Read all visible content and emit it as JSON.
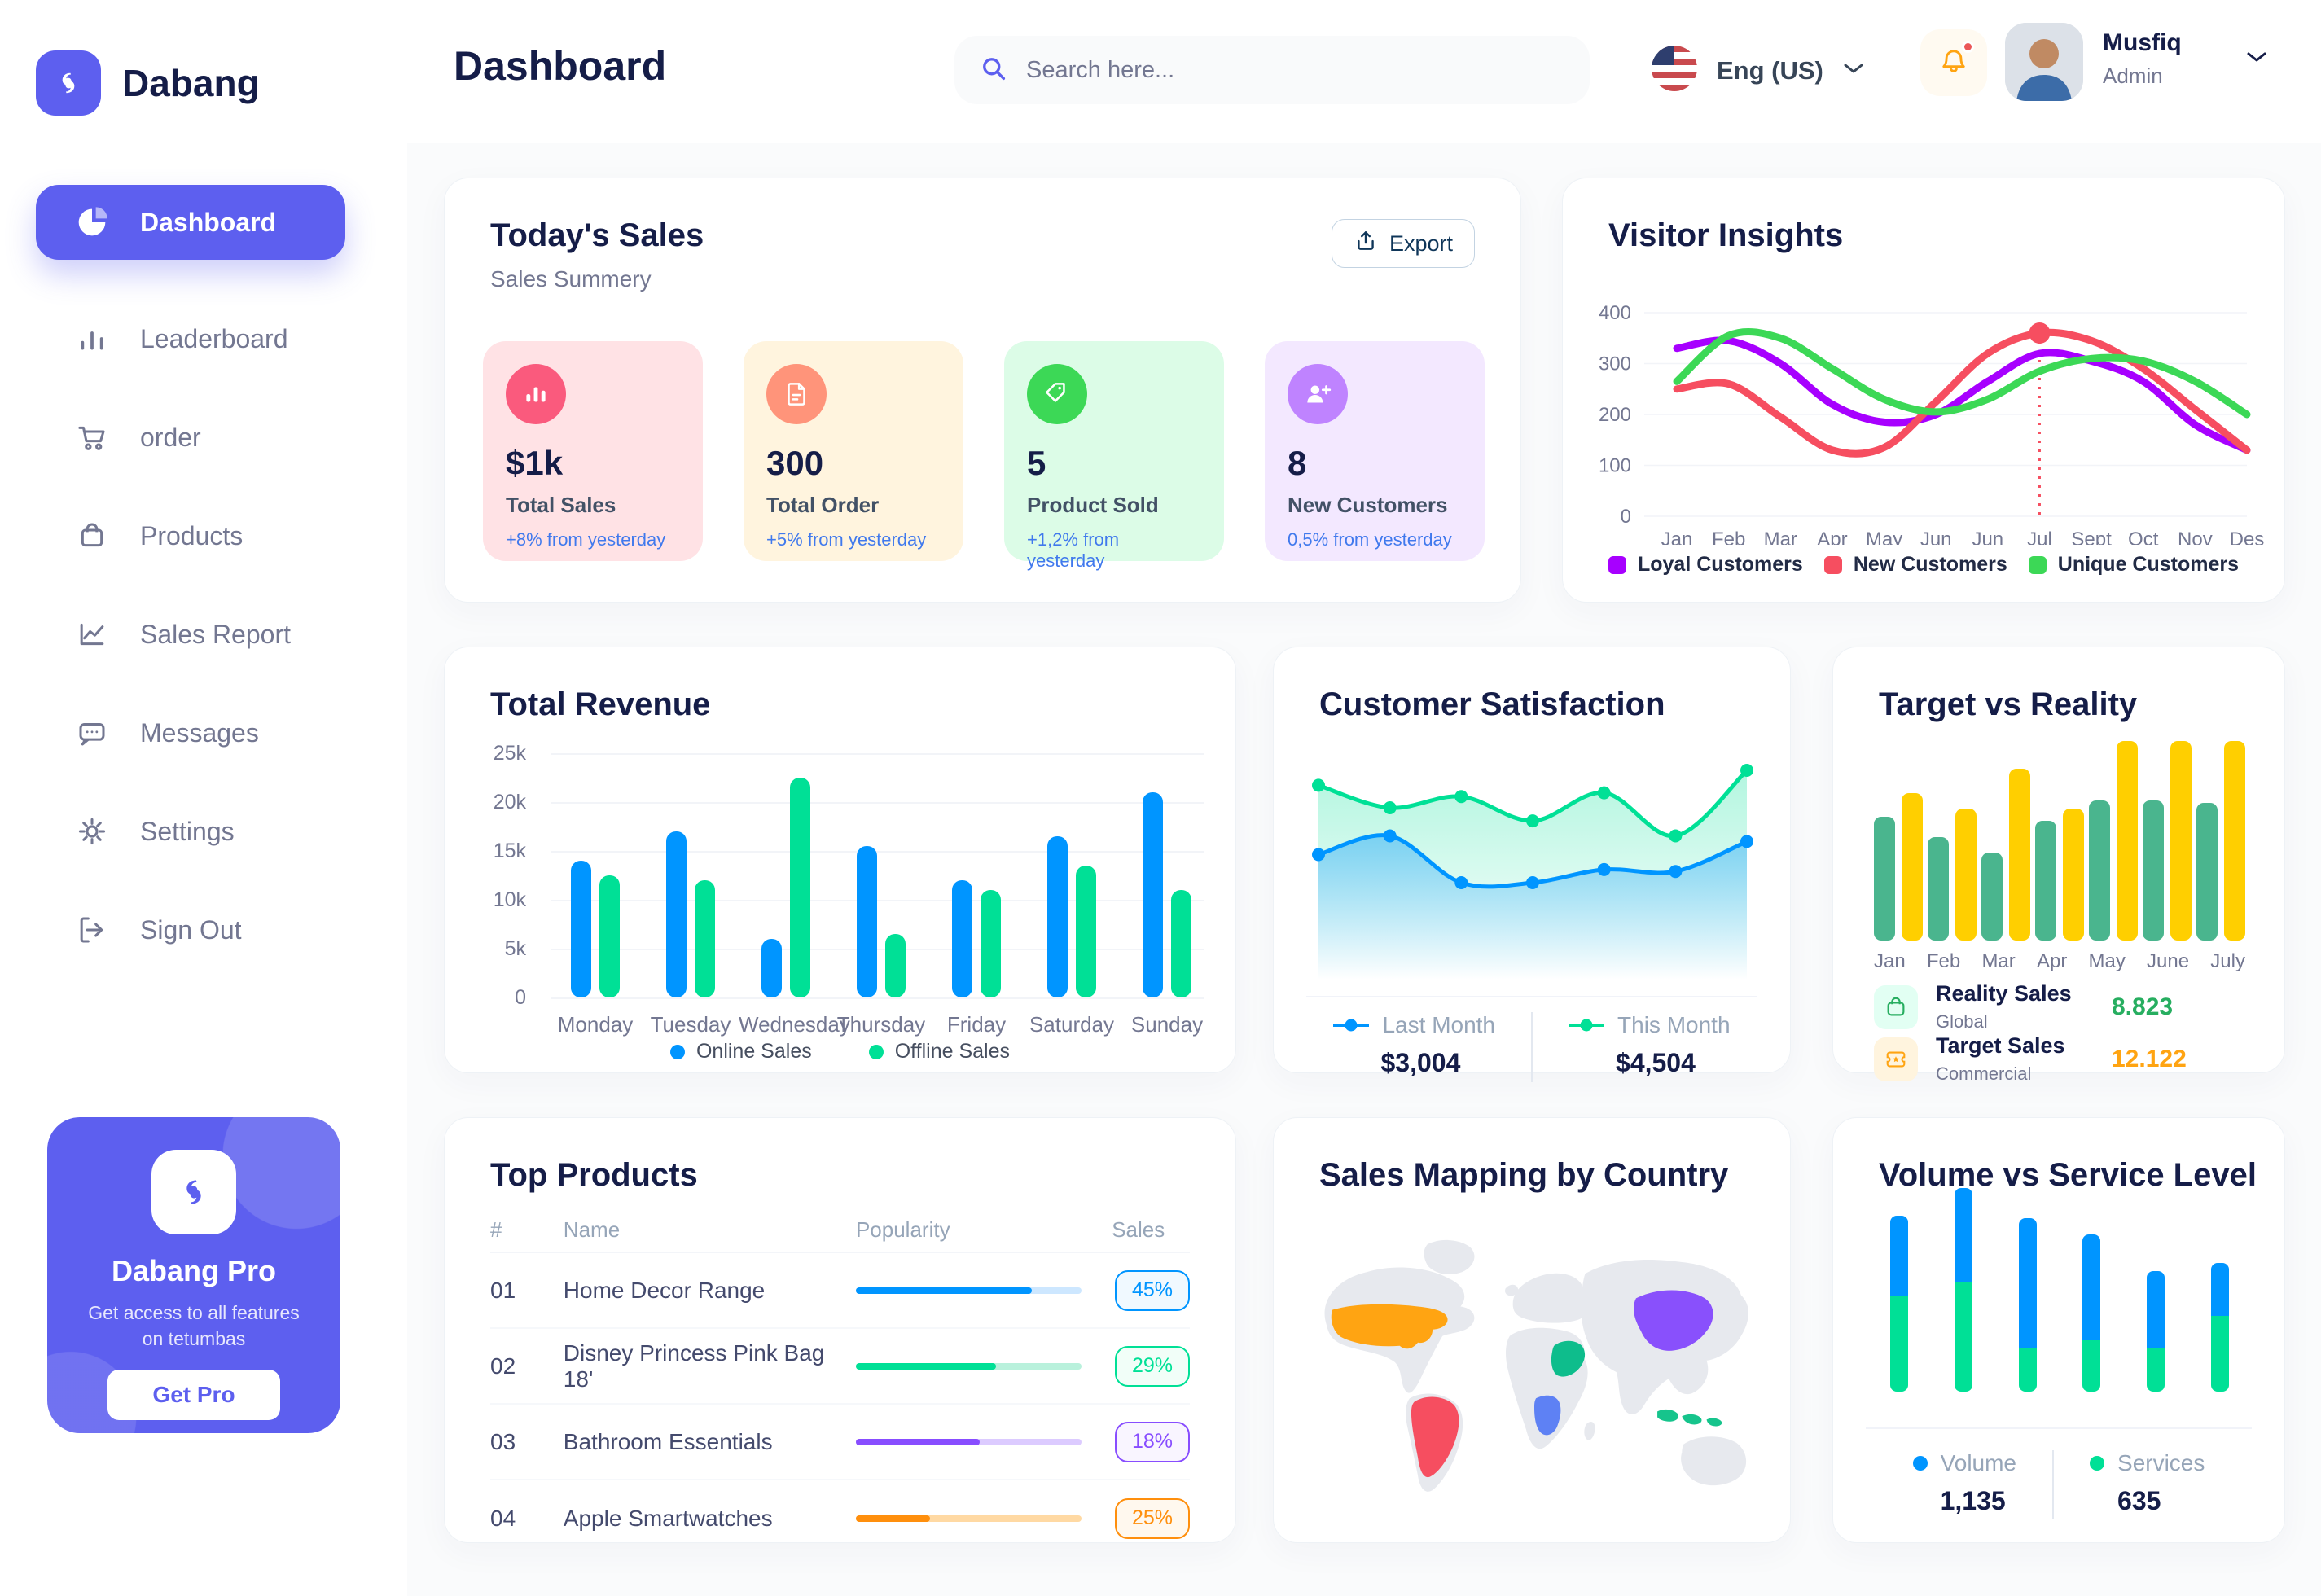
{
  "app": {
    "brand": "Dabang",
    "page_title": "Dashboard",
    "accent_color": "#5D5FEF"
  },
  "header": {
    "search": {
      "placeholder": "Search here..."
    },
    "language": {
      "label": "Eng (US)"
    },
    "notification": {
      "has_unread": true
    },
    "user": {
      "name": "Musfiq",
      "role": "Admin"
    }
  },
  "sidebar": {
    "items": [
      {
        "label": "Dashboard",
        "icon": "pie-chart-icon",
        "active": true
      },
      {
        "label": "Leaderboard",
        "icon": "bar-chart-icon",
        "active": false
      },
      {
        "label": "order",
        "icon": "cart-icon",
        "active": false
      },
      {
        "label": "Products",
        "icon": "bag-icon",
        "active": false
      },
      {
        "label": "Sales Report",
        "icon": "line-chart-icon",
        "active": false
      },
      {
        "label": "Messages",
        "icon": "message-icon",
        "active": false
      },
      {
        "label": "Settings",
        "icon": "gear-icon",
        "active": false
      },
      {
        "label": "Sign Out",
        "icon": "sign-out-icon",
        "active": false
      }
    ],
    "pro_card": {
      "title": "Dabang Pro",
      "description": "Get access to all features on tetumbas",
      "button": "Get Pro"
    }
  },
  "today_sales": {
    "title": "Today's Sales",
    "subtitle": "Sales Summery",
    "export_label": "Export",
    "cards": [
      {
        "value": "$1k",
        "label": "Total Sales",
        "delta": "+8% from yesterday",
        "bg": "#FFE2E5",
        "icon_bg": "#FA5A7D",
        "icon": "chart-icon"
      },
      {
        "value": "300",
        "label": "Total Order",
        "delta": "+5% from yesterday",
        "bg": "#FFF4DE",
        "icon_bg": "#FF947A",
        "icon": "file-icon"
      },
      {
        "value": "5",
        "label": "Product Sold",
        "delta": "+1,2% from yesterday",
        "bg": "#DCFCE7",
        "icon_bg": "#3CD856",
        "icon": "tag-icon"
      },
      {
        "value": "8",
        "label": "New Customers",
        "delta": "0,5% from yesterday",
        "bg": "#F3E8FF",
        "icon_bg": "#BF83FF",
        "icon": "user-plus-icon"
      }
    ]
  },
  "visitor_insights": {
    "title": "Visitor Insights",
    "chart_data": {
      "type": "line",
      "x": [
        "Jan",
        "Feb",
        "Mar",
        "Apr",
        "May",
        "Jun",
        "Jun",
        "Jul",
        "Sept",
        "Oct",
        "Nov",
        "Des"
      ],
      "ylim": [
        0,
        400
      ],
      "yticks": [
        0,
        100,
        200,
        300,
        400
      ],
      "series": [
        {
          "name": "Loyal Customers",
          "color": "#A700FF",
          "values": [
            330,
            345,
            300,
            220,
            185,
            200,
            265,
            320,
            305,
            265,
            180,
            130
          ]
        },
        {
          "name": "New Customers",
          "color": "#F64E60",
          "values": [
            250,
            260,
            195,
            130,
            135,
            225,
            320,
            360,
            345,
            290,
            210,
            130
          ]
        },
        {
          "name": "Unique Customers",
          "color": "#3CD856",
          "values": [
            265,
            355,
            350,
            290,
            230,
            205,
            230,
            285,
            310,
            305,
            265,
            200
          ]
        }
      ],
      "marker": {
        "series": "New Customers",
        "x_index": 7,
        "value": 360
      }
    }
  },
  "total_revenue": {
    "title": "Total Revenue",
    "chart_data": {
      "type": "bar",
      "categories": [
        "Monday",
        "Tuesday",
        "Wednesday",
        "Thursday",
        "Friday",
        "Saturday",
        "Sunday"
      ],
      "ylim": [
        0,
        25000
      ],
      "ytick_labels": [
        "0",
        "5k",
        "10k",
        "15k",
        "20k",
        "25k"
      ],
      "series": [
        {
          "name": "Online Sales",
          "color": "#0095FF",
          "values": [
            14000,
            17000,
            6000,
            15500,
            12000,
            16500,
            21000
          ]
        },
        {
          "name": "Offline Sales",
          "color": "#00E096",
          "values": [
            12500,
            12000,
            22500,
            6500,
            11000,
            13500,
            11000
          ]
        }
      ]
    }
  },
  "customer_satisfaction": {
    "title": "Customer Satisfaction",
    "chart_data": {
      "type": "area",
      "series": [
        {
          "name": "Last Month",
          "color": "#0095FF",
          "total": "$3,004",
          "values": [
            45,
            55,
            30,
            30,
            37,
            36,
            52
          ]
        },
        {
          "name": "This Month",
          "color": "#00E096",
          "total": "$4,504",
          "values": [
            82,
            70,
            76,
            63,
            78,
            55,
            90
          ]
        }
      ]
    }
  },
  "target_vs_reality": {
    "title": "Target vs Reality",
    "chart_data": {
      "type": "bar",
      "categories": [
        "Jan",
        "Feb",
        "Mar",
        "Apr",
        "May",
        "June",
        "July"
      ],
      "series": [
        {
          "name": "Reality Sales",
          "color": "#4AB58E",
          "values": [
            62,
            52,
            44,
            60,
            70,
            70,
            69
          ]
        },
        {
          "name": "Target Sales",
          "color": "#FFCF00",
          "values": [
            74,
            66,
            86,
            66,
            100,
            100,
            100
          ]
        }
      ]
    },
    "legend": [
      {
        "title": "Reality Sales",
        "subtitle": "Global",
        "value": "8.823",
        "value_color": "#27AE60",
        "tile_bg": "#E2FFF3",
        "icon": "shopping-bag-icon"
      },
      {
        "title": "Target Sales",
        "subtitle": "Commercial",
        "value": "12.122",
        "value_color": "#FFA412",
        "tile_bg": "#FFF4DE",
        "icon": "ticket-icon"
      }
    ]
  },
  "top_products": {
    "title": "Top Products",
    "columns": [
      "#",
      "Name",
      "Popularity",
      "Sales"
    ],
    "rows": [
      {
        "num": "01",
        "name": "Home Decor Range",
        "popularity_pct": 78,
        "sales": "45%",
        "color": "#0095FF",
        "track": "#CDE7FF",
        "badge_bg": "#F0F9FF"
      },
      {
        "num": "02",
        "name": "Disney Princess Pink Bag 18'",
        "popularity_pct": 62,
        "sales": "29%",
        "color": "#00E096",
        "track": "#B9F1DC",
        "badge_bg": "#F1FEF8"
      },
      {
        "num": "03",
        "name": "Bathroom Essentials",
        "popularity_pct": 55,
        "sales": "18%",
        "color": "#884DFF",
        "track": "#DCCBFF",
        "badge_bg": "#F9F5FF"
      },
      {
        "num": "04",
        "name": "Apple Smartwatches",
        "popularity_pct": 33,
        "sales": "25%",
        "color": "#FF8F0D",
        "track": "#FFD9A3",
        "badge_bg": "#FFF8EE"
      }
    ]
  },
  "sales_mapping": {
    "title": "Sales Mapping by Country",
    "land_color": "#E7E9EE",
    "countries": [
      {
        "id": "usa",
        "name": "United States",
        "color": "#FFA412"
      },
      {
        "id": "brazil",
        "name": "Brazil",
        "color": "#F64E60"
      },
      {
        "id": "saudi",
        "name": "Saudi Arabia",
        "color": "#0EBD8C"
      },
      {
        "id": "congo",
        "name": "DR Congo",
        "color": "#5E81F4"
      },
      {
        "id": "china",
        "name": "China",
        "color": "#8950FC"
      },
      {
        "id": "indonesia",
        "name": "Indonesia",
        "color": "#16C48C"
      }
    ]
  },
  "volume_service": {
    "title": "Volume vs Service Level",
    "chart_data": {
      "type": "stacked-bar",
      "series": [
        {
          "name": "Volume",
          "color": "#0095FF",
          "total": "1,135",
          "values": [
            39,
            46,
            64,
            52,
            38,
            26
          ]
        },
        {
          "name": "Services",
          "color": "#00E096",
          "total": "635",
          "values": [
            47,
            54,
            21,
            25,
            21,
            37
          ]
        }
      ]
    }
  }
}
